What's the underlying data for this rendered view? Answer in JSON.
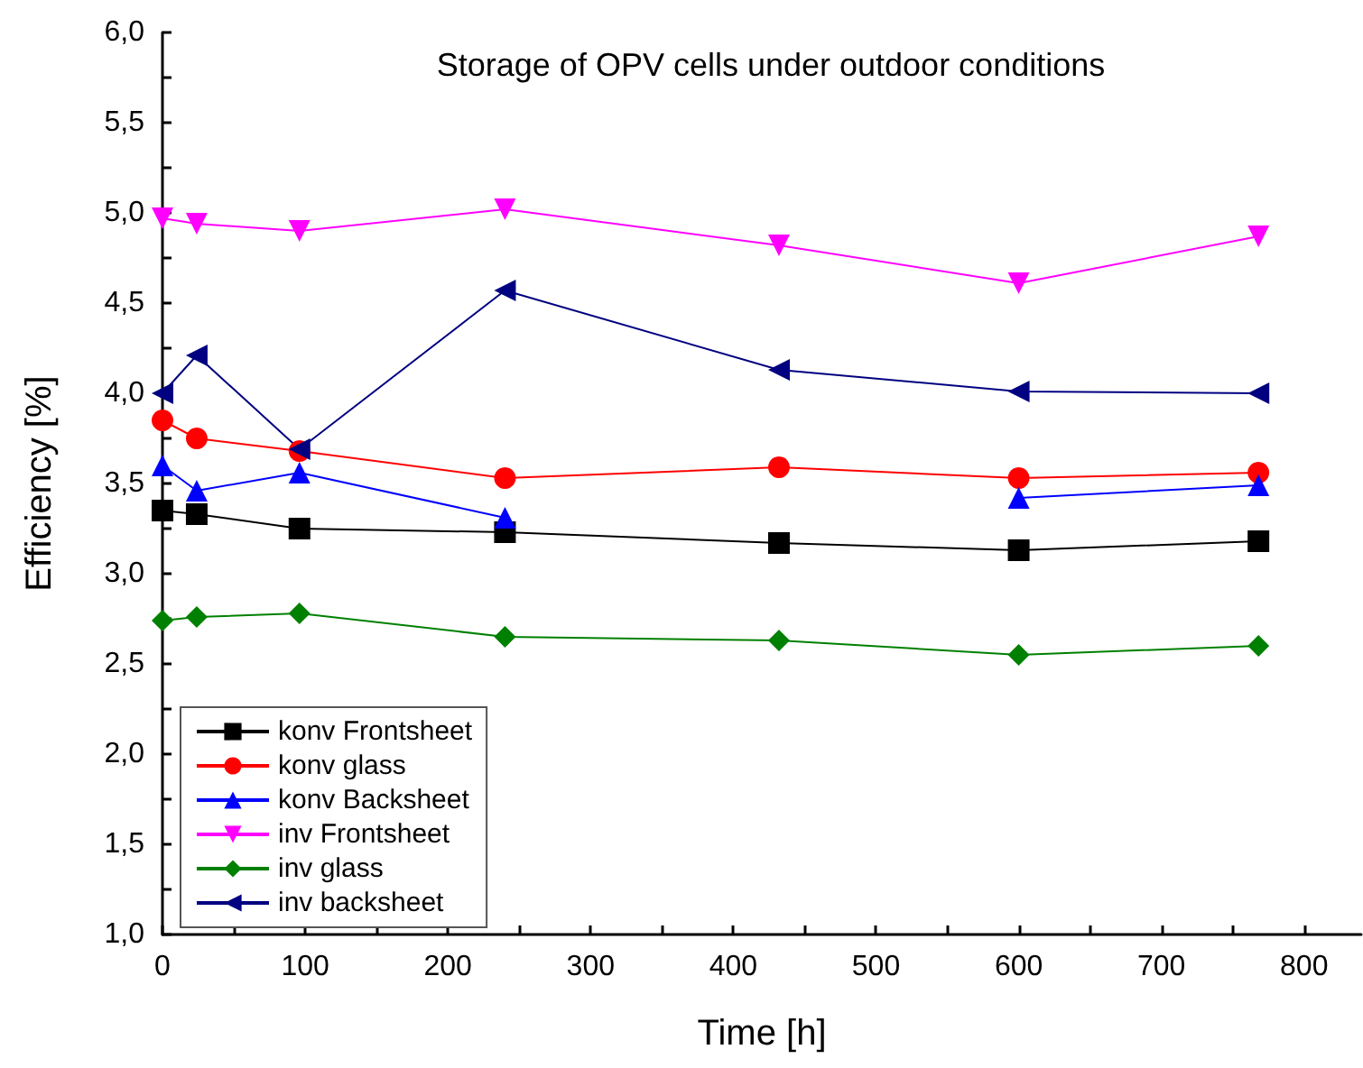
{
  "chart_data": {
    "type": "line",
    "title": "Storage of OPV cells under outdoor conditions",
    "xlabel": "Time [h]",
    "ylabel": "Efficiency [%]",
    "x": [
      0,
      24,
      96,
      240,
      432,
      600,
      768
    ],
    "series": [
      {
        "name": "konv Frontsheet",
        "color": "#000000",
        "marker": "square",
        "values": [
          3.35,
          3.33,
          3.25,
          3.23,
          3.17,
          3.13,
          3.18
        ]
      },
      {
        "name": "konv glass",
        "color": "#ff0000",
        "marker": "circle",
        "values": [
          3.85,
          3.75,
          3.68,
          3.53,
          3.59,
          3.53,
          3.56
        ]
      },
      {
        "name": "konv Backsheet",
        "color": "#0000ff",
        "marker": "triangle",
        "values": [
          3.6,
          3.46,
          3.56,
          3.31,
          null,
          3.42,
          3.49
        ]
      },
      {
        "name": "inv Frontsheet",
        "color": "#ff00ff",
        "marker": "triangle-down",
        "values": [
          4.97,
          4.94,
          4.9,
          5.02,
          4.82,
          4.61,
          4.87
        ]
      },
      {
        "name": "inv glass",
        "color": "#008000",
        "marker": "diamond",
        "values": [
          2.74,
          2.76,
          2.78,
          2.65,
          2.63,
          2.55,
          2.6
        ]
      },
      {
        "name": "inv backsheet",
        "color": "#000080",
        "marker": "triangle-left",
        "values": [
          4.0,
          4.21,
          3.69,
          4.57,
          4.13,
          4.01,
          4.0
        ]
      }
    ],
    "xlim": [
      0,
      840
    ],
    "xticks": [
      0,
      100,
      200,
      300,
      400,
      500,
      600,
      700,
      800
    ],
    "ylim": [
      1,
      6
    ],
    "yticks": [
      {
        "value": 1,
        "label": "1,0"
      },
      {
        "value": 1.5,
        "label": "1,5"
      },
      {
        "value": 2,
        "label": "2,0"
      },
      {
        "value": 2.5,
        "label": "2,5"
      },
      {
        "value": 3,
        "label": "3,0"
      },
      {
        "value": 3.5,
        "label": "3,5"
      },
      {
        "value": 4,
        "label": "4,0"
      },
      {
        "value": 4.5,
        "label": "4,5"
      },
      {
        "value": 5,
        "label": "5,0"
      },
      {
        "value": 5.5,
        "label": "5,5"
      },
      {
        "value": 6,
        "label": "6,0"
      }
    ],
    "grid": false,
    "legend": "bottom left",
    "line_style": "solid"
  }
}
